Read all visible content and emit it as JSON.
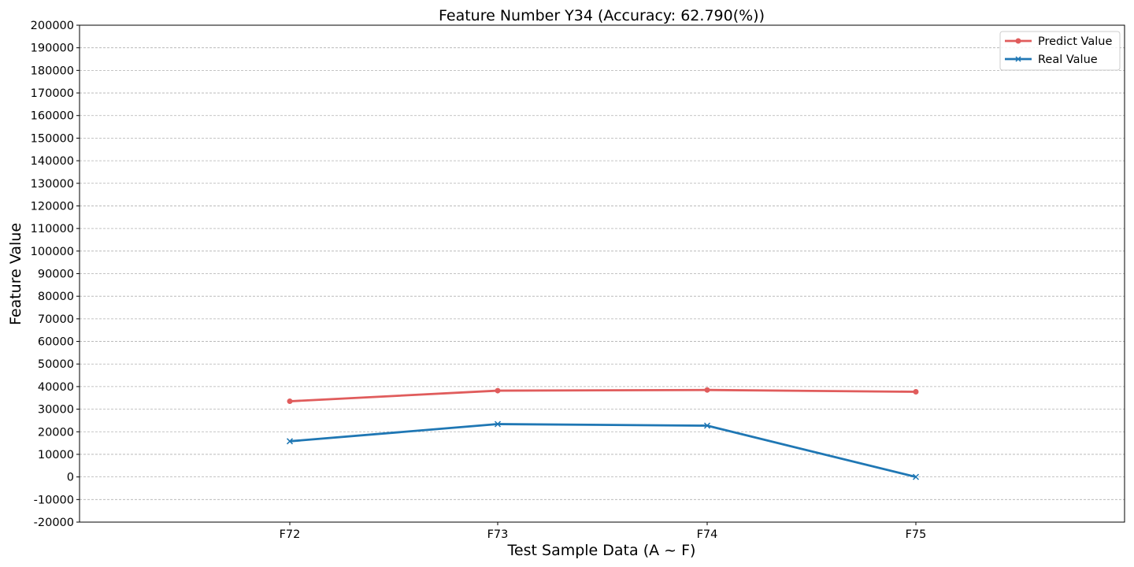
{
  "chart_data": {
    "type": "line",
    "title": "Feature Number Y34 (Accuracy: 62.790(%))",
    "xlabel": "Test Sample Data (A ~ F)",
    "ylabel": "Feature Value",
    "categories": [
      "F72",
      "F73",
      "F74",
      "F75"
    ],
    "ylim": [
      -20000,
      200000
    ],
    "ytick_step": 10000,
    "grid": "horizontal-dashed",
    "legend_position": "top-right",
    "series": [
      {
        "name": "Predict Value",
        "values": [
          33500,
          38200,
          38500,
          37700
        ],
        "color": "#e05c5c",
        "marker": "circle"
      },
      {
        "name": "Real Value",
        "values": [
          15800,
          23400,
          22700,
          0
        ],
        "color": "#1f77b4",
        "marker": "x"
      }
    ]
  }
}
